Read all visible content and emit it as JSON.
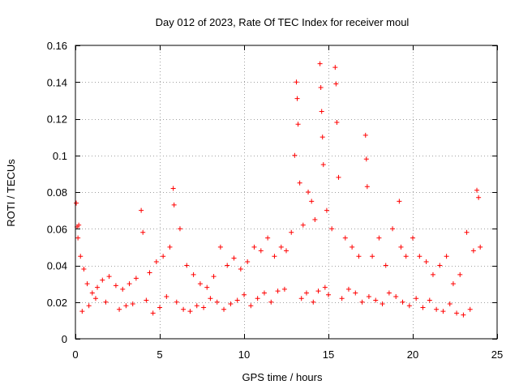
{
  "chart_data": {
    "type": "scatter",
    "title": "Day 012 of 2023, Rate Of TEC Index for receiver moul",
    "xlabel": "GPS time / hours",
    "ylabel": "ROTI / TECUs",
    "xlim": [
      0,
      25
    ],
    "ylim": [
      0,
      0.16
    ],
    "xticks": [
      0,
      5,
      10,
      15,
      20,
      25
    ],
    "xtick_labels": [
      "0",
      "5",
      "10",
      "15",
      "20",
      "25"
    ],
    "yticks": [
      0,
      0.02,
      0.04,
      0.06,
      0.08,
      0.1,
      0.12,
      0.14,
      0.16
    ],
    "ytick_labels": [
      "0",
      "0.02",
      "0.04",
      "0.06",
      "0.08",
      "0.1",
      "0.12",
      "0.14",
      "0.16"
    ],
    "grid": true,
    "marker": "+",
    "color": "#ff0000",
    "series": [
      {
        "name": "ROTI",
        "x": [
          0.05,
          0.1,
          0.15,
          0.2,
          0.3,
          0.5,
          0.7,
          1.0,
          1.3,
          1.6,
          2.0,
          2.4,
          2.8,
          3.2,
          3.6,
          3.9,
          4.0,
          4.4,
          4.8,
          5.2,
          5.6,
          5.8,
          5.85,
          6.2,
          6.6,
          7.0,
          7.4,
          7.8,
          8.2,
          8.6,
          9.0,
          9.4,
          9.8,
          10.2,
          10.6,
          11.0,
          11.4,
          11.8,
          12.2,
          12.5,
          12.8,
          13.0,
          13.1,
          13.15,
          13.2,
          13.3,
          13.5,
          13.8,
          14.0,
          14.2,
          14.5,
          14.55,
          14.6,
          14.65,
          14.7,
          14.9,
          15.2,
          15.4,
          15.45,
          15.5,
          15.6,
          16.0,
          16.4,
          16.8,
          17.2,
          17.25,
          17.3,
          17.6,
          18.0,
          18.4,
          18.8,
          19.2,
          19.3,
          19.6,
          20.0,
          20.4,
          20.8,
          21.2,
          21.6,
          22.0,
          22.4,
          22.8,
          23.2,
          23.6,
          23.8,
          23.9,
          24.0,
          0.4,
          0.8,
          1.2,
          1.8,
          2.6,
          3.0,
          3.4,
          4.2,
          4.6,
          5.0,
          5.4,
          6.0,
          6.4,
          6.8,
          7.2,
          7.6,
          8.0,
          8.4,
          8.8,
          9.2,
          9.6,
          10.0,
          10.4,
          10.8,
          11.2,
          11.6,
          12.0,
          12.4,
          13.4,
          13.7,
          14.1,
          14.4,
          14.8,
          15.0,
          15.8,
          16.2,
          16.6,
          17.0,
          17.4,
          17.8,
          18.2,
          18.6,
          19.0,
          19.4,
          19.8,
          20.2,
          20.6,
          21.0,
          21.4,
          21.8,
          22.2,
          22.6,
          23.0,
          23.4
        ],
        "y": [
          0.074,
          0.061,
          0.055,
          0.062,
          0.045,
          0.038,
          0.03,
          0.025,
          0.028,
          0.032,
          0.034,
          0.029,
          0.027,
          0.03,
          0.033,
          0.07,
          0.058,
          0.036,
          0.042,
          0.045,
          0.05,
          0.082,
          0.073,
          0.06,
          0.04,
          0.035,
          0.03,
          0.028,
          0.034,
          0.05,
          0.04,
          0.044,
          0.038,
          0.042,
          0.05,
          0.048,
          0.055,
          0.045,
          0.05,
          0.048,
          0.058,
          0.1,
          0.14,
          0.131,
          0.117,
          0.085,
          0.062,
          0.08,
          0.075,
          0.065,
          0.15,
          0.137,
          0.124,
          0.11,
          0.095,
          0.07,
          0.06,
          0.148,
          0.139,
          0.118,
          0.088,
          0.055,
          0.05,
          0.045,
          0.111,
          0.098,
          0.083,
          0.045,
          0.055,
          0.04,
          0.06,
          0.075,
          0.05,
          0.045,
          0.055,
          0.045,
          0.042,
          0.035,
          0.04,
          0.045,
          0.03,
          0.035,
          0.058,
          0.048,
          0.081,
          0.077,
          0.05,
          0.015,
          0.018,
          0.022,
          0.02,
          0.016,
          0.018,
          0.019,
          0.021,
          0.014,
          0.017,
          0.023,
          0.02,
          0.016,
          0.015,
          0.018,
          0.017,
          0.022,
          0.02,
          0.016,
          0.019,
          0.021,
          0.024,
          0.018,
          0.022,
          0.025,
          0.02,
          0.026,
          0.027,
          0.022,
          0.025,
          0.02,
          0.026,
          0.028,
          0.024,
          0.022,
          0.027,
          0.025,
          0.02,
          0.023,
          0.021,
          0.019,
          0.025,
          0.023,
          0.02,
          0.018,
          0.022,
          0.017,
          0.021,
          0.016,
          0.015,
          0.019,
          0.014,
          0.013,
          0.016
        ]
      }
    ]
  }
}
